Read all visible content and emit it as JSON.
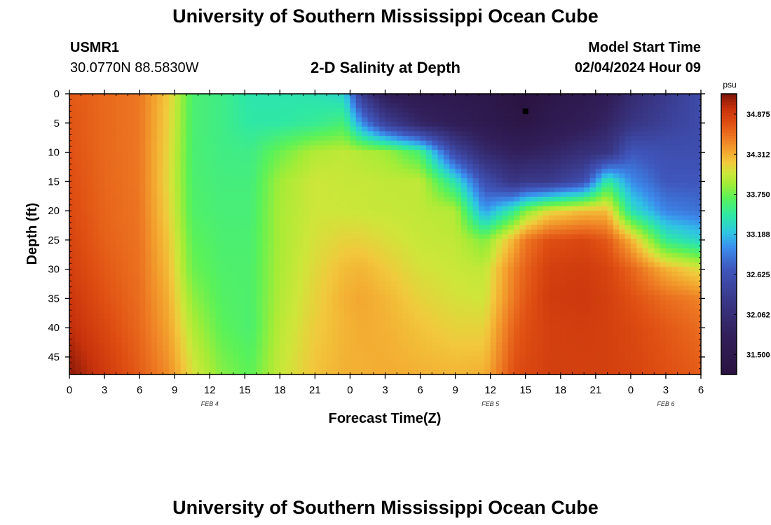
{
  "header": {
    "title": "University of Southern Mississippi Ocean Cube",
    "station_id": "USMR1",
    "coordinates": "30.0770N  88.5830W",
    "plot_title": "2-D Salinity at Depth",
    "model_start_label": "Model Start Time",
    "model_start_value": "02/04/2024 Hour 09"
  },
  "footer": {
    "title": "University of Southern Mississippi Ocean Cube"
  },
  "chart_data": {
    "type": "heatmap",
    "title": "2-D Salinity at Depth",
    "xlabel": "Forecast Time(Z)",
    "ylabel": "Depth (ft)",
    "x_ticks": [
      "0",
      "3",
      "6",
      "9",
      "12",
      "15",
      "18",
      "21",
      "0",
      "3",
      "6",
      "9",
      "12",
      "15",
      "18",
      "21",
      "0",
      "3",
      "6"
    ],
    "x_tick_hours": [
      0,
      3,
      6,
      9,
      12,
      15,
      18,
      21,
      24,
      27,
      30,
      33,
      36,
      39,
      42,
      45,
      48,
      51,
      54
    ],
    "x_range_hours": [
      0,
      54
    ],
    "date_labels": [
      {
        "text": "FEB 4",
        "hour": 12
      },
      {
        "text": "FEB 5",
        "hour": 36
      },
      {
        "text": "FEB 6",
        "hour": 51
      }
    ],
    "y_ticks": [
      "0",
      "5",
      "10",
      "15",
      "20",
      "25",
      "30",
      "35",
      "40",
      "45"
    ],
    "y_tick_values": [
      0,
      5,
      10,
      15,
      20,
      25,
      30,
      35,
      40,
      45
    ],
    "y_range_ft": [
      0,
      48
    ],
    "marker": {
      "hour": 39,
      "depth": 3
    },
    "colorbar": {
      "unit": "psu",
      "min": 31.22,
      "max": 35.16,
      "tick_labels": [
        "34.875",
        "34.312",
        "33.750",
        "33.188",
        "32.625",
        "32.062",
        "31.500"
      ],
      "tick_values": [
        34.875,
        34.312,
        33.75,
        33.188,
        32.625,
        32.062,
        31.5
      ],
      "stops": [
        {
          "v": 31.22,
          "c": "#2a1340"
        },
        {
          "v": 31.8,
          "c": "#32205c"
        },
        {
          "v": 32.3,
          "c": "#3a3a8c"
        },
        {
          "v": 32.7,
          "c": "#3f56bc"
        },
        {
          "v": 33.0,
          "c": "#3b8ded"
        },
        {
          "v": 33.2,
          "c": "#2fc4e5"
        },
        {
          "v": 33.45,
          "c": "#2ee8a5"
        },
        {
          "v": 33.7,
          "c": "#5af258"
        },
        {
          "v": 33.9,
          "c": "#a4ec36"
        },
        {
          "v": 34.05,
          "c": "#cee63a"
        },
        {
          "v": 34.2,
          "c": "#f2c83c"
        },
        {
          "v": 34.35,
          "c": "#f3a52f"
        },
        {
          "v": 34.55,
          "c": "#ed7722"
        },
        {
          "v": 34.75,
          "c": "#df4e12"
        },
        {
          "v": 34.95,
          "c": "#c8320c"
        },
        {
          "v": 35.16,
          "c": "#7c1406"
        }
      ]
    },
    "field_depths_ft": [
      0,
      5,
      10,
      15,
      20,
      25,
      30,
      35,
      40,
      48
    ],
    "field_columns": [
      {
        "hour": 0,
        "values": [
          34.7,
          34.72,
          34.74,
          34.76,
          34.78,
          34.82,
          34.86,
          34.92,
          34.98,
          35.12
        ]
      },
      {
        "hour": 3,
        "values": [
          34.62,
          34.62,
          34.62,
          34.63,
          34.64,
          34.66,
          34.7,
          34.74,
          34.8,
          34.9
        ]
      },
      {
        "hour": 6,
        "values": [
          34.55,
          34.55,
          34.55,
          34.55,
          34.56,
          34.57,
          34.58,
          34.6,
          34.62,
          34.68
        ]
      },
      {
        "hour": 8.5,
        "values": [
          34.18,
          34.15,
          34.13,
          34.12,
          34.15,
          34.2,
          34.25,
          34.3,
          34.35,
          34.45
        ]
      },
      {
        "hour": 10.5,
        "values": [
          33.62,
          33.62,
          33.62,
          33.63,
          33.65,
          33.7,
          33.75,
          33.85,
          33.95,
          34.1
        ]
      },
      {
        "hour": 13,
        "values": [
          33.55,
          33.55,
          33.56,
          33.58,
          33.6,
          33.62,
          33.64,
          33.66,
          33.7,
          33.82
        ]
      },
      {
        "hour": 15.5,
        "values": [
          33.42,
          33.45,
          33.55,
          33.58,
          33.6,
          33.62,
          33.63,
          33.63,
          33.62,
          33.7
        ]
      },
      {
        "hour": 18,
        "values": [
          33.42,
          33.45,
          33.75,
          33.9,
          33.92,
          33.92,
          33.93,
          33.95,
          33.98,
          34.02
        ]
      },
      {
        "hour": 21,
        "values": [
          33.4,
          33.5,
          33.95,
          34.05,
          34.05,
          34.08,
          34.12,
          34.15,
          34.18,
          34.22
        ]
      },
      {
        "hour": 23.5,
        "values": [
          33.3,
          33.6,
          34.0,
          34.02,
          34.04,
          34.15,
          34.25,
          34.3,
          34.28,
          34.3
        ]
      },
      {
        "hour": 25,
        "values": [
          32.3,
          33.0,
          33.95,
          34.02,
          34.03,
          34.15,
          34.28,
          34.34,
          34.32,
          34.3
        ]
      },
      {
        "hour": 27,
        "values": [
          31.7,
          32.4,
          33.9,
          34.0,
          34.02,
          34.1,
          34.2,
          34.28,
          34.3,
          34.32
        ]
      },
      {
        "hour": 30,
        "values": [
          31.55,
          31.9,
          33.6,
          34.0,
          34.0,
          34.02,
          34.08,
          34.15,
          34.22,
          34.3
        ]
      },
      {
        "hour": 33,
        "values": [
          31.5,
          31.7,
          32.5,
          33.4,
          33.95,
          34.0,
          34.03,
          34.08,
          34.15,
          34.28
        ]
      },
      {
        "hour": 35.5,
        "values": [
          31.45,
          31.55,
          32.0,
          32.6,
          33.05,
          33.8,
          34.0,
          34.05,
          34.15,
          34.3
        ]
      },
      {
        "hour": 38,
        "values": [
          31.3,
          31.4,
          31.8,
          32.2,
          33.5,
          34.3,
          34.5,
          34.55,
          34.65,
          34.75
        ]
      },
      {
        "hour": 39,
        "values": [
          31.24,
          31.35,
          31.8,
          32.3,
          33.8,
          34.55,
          34.65,
          34.7,
          34.75,
          34.8
        ]
      },
      {
        "hour": 41,
        "values": [
          31.4,
          31.55,
          31.9,
          32.3,
          34.1,
          34.75,
          34.85,
          34.88,
          34.85,
          34.85
        ]
      },
      {
        "hour": 44,
        "values": [
          31.55,
          31.7,
          32.1,
          32.6,
          34.25,
          34.8,
          34.88,
          34.9,
          34.87,
          34.85
        ]
      },
      {
        "hour": 46,
        "values": [
          31.7,
          31.9,
          32.2,
          33.5,
          34.25,
          34.7,
          34.82,
          34.85,
          34.85,
          34.85
        ]
      },
      {
        "hour": 48,
        "values": [
          32.0,
          32.2,
          32.7,
          33.0,
          33.4,
          34.3,
          34.65,
          34.75,
          34.8,
          34.82
        ]
      },
      {
        "hour": 51,
        "values": [
          32.3,
          32.4,
          32.6,
          32.7,
          32.95,
          33.5,
          34.3,
          34.6,
          34.7,
          34.75
        ]
      },
      {
        "hour": 54,
        "values": [
          32.55,
          32.55,
          32.6,
          32.7,
          32.85,
          33.3,
          34.1,
          34.5,
          34.6,
          34.68
        ]
      }
    ]
  }
}
